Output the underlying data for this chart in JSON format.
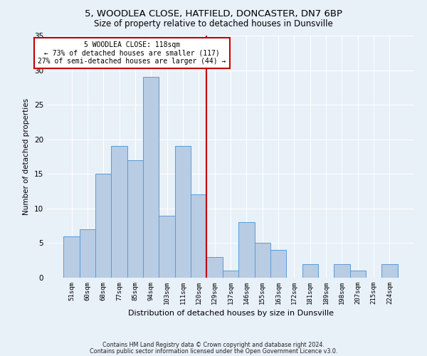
{
  "title": "5, WOODLEA CLOSE, HATFIELD, DONCASTER, DN7 6BP",
  "subtitle": "Size of property relative to detached houses in Dunsville",
  "xlabel": "Distribution of detached houses by size in Dunsville",
  "ylabel": "Number of detached properties",
  "categories": [
    "51sqm",
    "60sqm",
    "68sqm",
    "77sqm",
    "85sqm",
    "94sqm",
    "103sqm",
    "111sqm",
    "120sqm",
    "129sqm",
    "137sqm",
    "146sqm",
    "155sqm",
    "163sqm",
    "172sqm",
    "181sqm",
    "189sqm",
    "198sqm",
    "207sqm",
    "215sqm",
    "224sqm"
  ],
  "values": [
    6,
    7,
    15,
    19,
    17,
    29,
    9,
    19,
    12,
    3,
    1,
    8,
    5,
    4,
    0,
    2,
    0,
    2,
    1,
    0,
    2
  ],
  "bar_color": "#b8cce4",
  "bar_edge_color": "#5b9bd5",
  "vline_color": "#c00000",
  "annotation_text": "5 WOODLEA CLOSE: 118sqm\n← 73% of detached houses are smaller (117)\n27% of semi-detached houses are larger (44) →",
  "annotation_box_color": "#ffffff",
  "annotation_box_edge": "#c00000",
  "ylim": [
    0,
    35
  ],
  "yticks": [
    0,
    5,
    10,
    15,
    20,
    25,
    30,
    35
  ],
  "footer_line1": "Contains HM Land Registry data © Crown copyright and database right 2024.",
  "footer_line2": "Contains public sector information licensed under the Open Government Licence v3.0.",
  "bg_color": "#e8f0f8",
  "plot_bg_color": "#e8f0f8",
  "grid_color": "#ffffff",
  "title_fontsize": 9.5,
  "subtitle_fontsize": 8.5
}
